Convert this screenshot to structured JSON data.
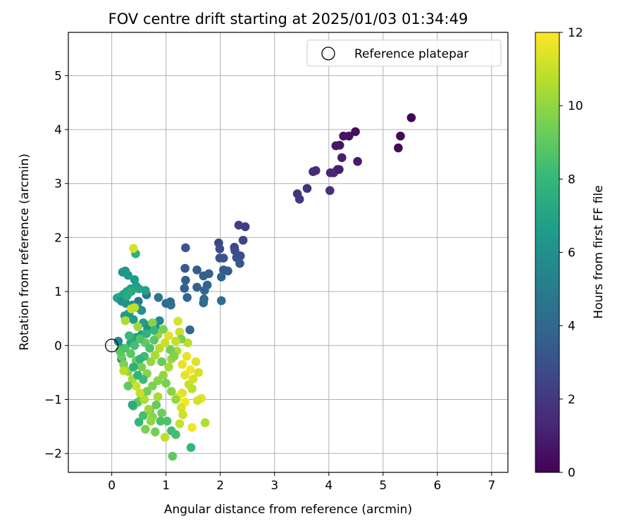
{
  "chart_data": {
    "type": "scatter",
    "title": "FOV centre drift starting at 2025/01/03 01:34:49",
    "xlabel": "Angular distance from reference (arcmin)",
    "ylabel": "Rotation from reference (arcmin)",
    "xlim": [
      -0.8,
      7.3
    ],
    "ylim": [
      -2.35,
      5.8
    ],
    "xticks": [
      "0",
      "1",
      "2",
      "3",
      "4",
      "5",
      "6",
      "7"
    ],
    "yticks": [
      "−2",
      "−1",
      "0",
      "1",
      "2",
      "3",
      "4",
      "5"
    ],
    "grid": true,
    "legend": {
      "position": "top-right",
      "entries": [
        "Reference platepar"
      ]
    },
    "reference_point": {
      "x": 0.0,
      "y": 0.0,
      "marker": "open-circle"
    },
    "colorbar": {
      "label": "Hours from first FF file",
      "range": [
        0,
        12
      ],
      "ticks": [
        "0",
        "2",
        "4",
        "6",
        "8",
        "10",
        "12"
      ],
      "colormap": "viridis",
      "colors": [
        "#440154",
        "#482878",
        "#3e4989",
        "#31688e",
        "#26828e",
        "#1f9e89",
        "#35b779",
        "#6ece58",
        "#b5de2b",
        "#fde725"
      ]
    },
    "points": [
      [
        5.52,
        4.22,
        0.1
      ],
      [
        5.32,
        3.88,
        0.2
      ],
      [
        5.28,
        3.66,
        0.3
      ],
      [
        4.49,
        3.96,
        0.4
      ],
      [
        4.37,
        3.88,
        0.5
      ],
      [
        4.27,
        3.88,
        0.6
      ],
      [
        4.2,
        3.71,
        0.7
      ],
      [
        4.13,
        3.7,
        0.8
      ],
      [
        4.53,
        3.41,
        0.9
      ],
      [
        4.24,
        3.48,
        1.0
      ],
      [
        4.16,
        3.26,
        1.1
      ],
      [
        4.09,
        3.2,
        1.2
      ],
      [
        4.03,
        3.2,
        1.3
      ],
      [
        3.76,
        3.24,
        1.4
      ],
      [
        3.71,
        3.22,
        1.5
      ],
      [
        4.02,
        2.87,
        1.6
      ],
      [
        3.6,
        2.91,
        1.7
      ],
      [
        3.42,
        2.81,
        1.8
      ],
      [
        3.46,
        2.71,
        1.9
      ],
      [
        4.19,
        3.26,
        1.0
      ],
      [
        2.46,
        2.2,
        2.2
      ],
      [
        2.34,
        2.23,
        2.3
      ],
      [
        2.42,
        1.95,
        2.4
      ],
      [
        1.97,
        1.9,
        2.5
      ],
      [
        2.26,
        1.82,
        2.6
      ],
      [
        2.27,
        1.76,
        2.7
      ],
      [
        2.37,
        1.66,
        2.8
      ],
      [
        1.99,
        1.79,
        2.9
      ],
      [
        2.3,
        1.63,
        3.0
      ],
      [
        1.99,
        1.62,
        3.1
      ],
      [
        2.06,
        1.62,
        3.2
      ],
      [
        2.36,
        1.52,
        3.3
      ],
      [
        2.06,
        1.4,
        3.4
      ],
      [
        2.14,
        1.38,
        3.5
      ],
      [
        1.79,
        1.33,
        3.6
      ],
      [
        1.69,
        1.29,
        3.7
      ],
      [
        2.02,
        1.27,
        3.8
      ],
      [
        1.76,
        1.12,
        3.9
      ],
      [
        1.71,
        1.02,
        4.0
      ],
      [
        1.7,
        0.86,
        4.1
      ],
      [
        1.69,
        0.79,
        4.2
      ],
      [
        2.02,
        0.83,
        4.3
      ],
      [
        1.57,
        1.4,
        3.5
      ],
      [
        1.57,
        1.08,
        3.8
      ],
      [
        1.36,
        1.81,
        3.2
      ],
      [
        1.35,
        1.43,
        3.4
      ],
      [
        1.36,
        1.21,
        3.6
      ],
      [
        1.34,
        1.06,
        3.7
      ],
      [
        1.39,
        0.89,
        3.9
      ],
      [
        1.08,
        0.81,
        4.2
      ],
      [
        1.09,
        0.75,
        4.4
      ],
      [
        1.0,
        0.78,
        4.3
      ],
      [
        0.86,
        0.89,
        4.5
      ],
      [
        0.64,
        0.94,
        4.6
      ],
      [
        0.49,
        0.82,
        4.7
      ],
      [
        1.44,
        0.29,
        4.0
      ],
      [
        0.25,
        1.38,
        6.2
      ],
      [
        0.2,
        1.36,
        6.3
      ],
      [
        0.3,
        1.3,
        6.4
      ],
      [
        0.42,
        1.22,
        6.5
      ],
      [
        0.45,
        1.1,
        6.6
      ],
      [
        0.35,
        1.05,
        6.7
      ],
      [
        0.28,
        1.0,
        6.8
      ],
      [
        0.22,
        0.95,
        6.9
      ],
      [
        0.15,
        0.9,
        7.0
      ],
      [
        0.1,
        0.88,
        7.1
      ],
      [
        0.18,
        0.82,
        6.0
      ],
      [
        0.26,
        0.78,
        6.1
      ],
      [
        0.38,
        0.75,
        6.2
      ],
      [
        0.48,
        0.7,
        6.3
      ],
      [
        0.55,
        0.65,
        5.9
      ],
      [
        0.32,
        0.6,
        6.4
      ],
      [
        0.24,
        0.55,
        6.5
      ],
      [
        0.4,
        0.48,
        6.6
      ],
      [
        0.58,
        0.42,
        6.7
      ],
      [
        0.7,
        0.38,
        6.5
      ],
      [
        0.66,
        0.3,
        5.8
      ],
      [
        0.8,
        0.35,
        6.0
      ],
      [
        0.88,
        0.46,
        5.7
      ],
      [
        0.55,
        0.2,
        6.8
      ],
      [
        0.45,
        0.15,
        7.0
      ],
      [
        0.35,
        0.05,
        7.2
      ],
      [
        0.2,
        -0.05,
        7.5
      ],
      [
        0.12,
        0.08,
        5.6
      ],
      [
        0.18,
        -0.25,
        5.5
      ],
      [
        0.28,
        0.92,
        7.2
      ],
      [
        0.36,
        1.0,
        7.3
      ],
      [
        0.5,
        1.05,
        7.0
      ],
      [
        0.62,
        1.02,
        6.8
      ],
      [
        0.44,
        1.7,
        7.5
      ],
      [
        0.4,
        1.8,
        11.2
      ],
      [
        0.36,
        0.68,
        11.0
      ],
      [
        0.42,
        0.7,
        10.8
      ],
      [
        0.25,
        0.46,
        10.5
      ],
      [
        0.48,
        0.35,
        10.2
      ],
      [
        0.75,
        0.42,
        9.8
      ],
      [
        0.85,
        0.2,
        10.1
      ],
      [
        0.95,
        0.3,
        9.5
      ],
      [
        1.05,
        0.18,
        11.4
      ],
      [
        1.22,
        0.45,
        11.3
      ],
      [
        1.25,
        0.25,
        11.0
      ],
      [
        1.4,
        0.05,
        10.8
      ],
      [
        1.2,
        -0.1,
        10.5
      ],
      [
        1.1,
        -0.25,
        10.2
      ],
      [
        1.3,
        -0.35,
        11.6
      ],
      [
        1.45,
        -0.45,
        11.8
      ],
      [
        1.35,
        -0.55,
        11.5
      ],
      [
        1.5,
        -0.62,
        11.2
      ],
      [
        1.42,
        -0.72,
        11.0
      ],
      [
        1.48,
        -0.8,
        10.8
      ],
      [
        1.3,
        -0.88,
        11.4
      ],
      [
        1.22,
        -0.95,
        11.7
      ],
      [
        1.35,
        -1.05,
        11.9
      ],
      [
        1.28,
        -1.15,
        11.3
      ],
      [
        1.31,
        -1.28,
        11.1
      ],
      [
        1.65,
        -0.98,
        11.5
      ],
      [
        1.58,
        -1.02,
        11.2
      ],
      [
        1.72,
        -1.43,
        10.6
      ],
      [
        1.48,
        -1.52,
        11.8
      ],
      [
        1.25,
        -1.45,
        11.0
      ],
      [
        1.05,
        -0.4,
        10.4
      ],
      [
        0.95,
        -0.55,
        10.0
      ],
      [
        0.85,
        -0.65,
        9.8
      ],
      [
        0.75,
        -0.75,
        9.6
      ],
      [
        0.65,
        -0.85,
        9.4
      ],
      [
        0.55,
        -0.95,
        9.2
      ],
      [
        0.48,
        -1.05,
        9.0
      ],
      [
        0.4,
        -1.12,
        8.8
      ],
      [
        0.38,
        -1.1,
        7.4
      ],
      [
        0.5,
        -1.42,
        8.0
      ],
      [
        0.58,
        -1.3,
        8.4
      ],
      [
        0.7,
        -1.2,
        8.7
      ],
      [
        0.82,
        -1.1,
        9.1
      ],
      [
        0.92,
        -1.25,
        9.3
      ],
      [
        1.02,
        -1.4,
        8.6
      ],
      [
        1.1,
        -1.58,
        8.2
      ],
      [
        1.18,
        -1.65,
        8.4
      ],
      [
        1.46,
        -1.89,
        8.0
      ],
      [
        1.12,
        -2.05,
        9.0
      ],
      [
        0.9,
        -1.4,
        8.5
      ],
      [
        0.75,
        -1.32,
        9.8
      ],
      [
        0.68,
        -1.18,
        10.2
      ],
      [
        0.6,
        -1.0,
        10.6
      ],
      [
        0.52,
        -0.88,
        10.9
      ],
      [
        0.45,
        -0.75,
        11.1
      ],
      [
        0.38,
        -0.62,
        10.4
      ],
      [
        0.3,
        -0.48,
        10.0
      ],
      [
        0.22,
        -0.35,
        9.6
      ],
      [
        0.18,
        -0.2,
        9.2
      ],
      [
        0.15,
        -0.1,
        8.8
      ],
      [
        0.25,
        -0.05,
        8.6
      ],
      [
        0.35,
        -0.15,
        8.9
      ],
      [
        0.45,
        -0.28,
        9.2
      ],
      [
        0.55,
        -0.4,
        9.5
      ],
      [
        0.65,
        -0.52,
        9.8
      ],
      [
        0.72,
        -0.3,
        10.1
      ],
      [
        0.8,
        -0.18,
        10.4
      ],
      [
        0.88,
        -0.05,
        10.7
      ],
      [
        0.98,
        0.05,
        11.0
      ],
      [
        1.08,
        -0.08,
        9.4
      ],
      [
        1.15,
        -0.2,
        9.7
      ],
      [
        0.62,
        0.05,
        9.0
      ],
      [
        0.52,
        0.12,
        8.7
      ],
      [
        0.42,
        0.0,
        8.4
      ],
      [
        0.32,
        0.18,
        8.1
      ],
      [
        0.6,
        -0.2,
        8.3
      ],
      [
        0.7,
        -0.05,
        8.6
      ],
      [
        0.78,
        0.1,
        8.9
      ],
      [
        0.92,
        -0.3,
        9.2
      ],
      [
        1.0,
        -0.7,
        9.5
      ],
      [
        1.1,
        -0.85,
        9.8
      ],
      [
        1.18,
        -1.0,
        10.1
      ],
      [
        0.85,
        -0.95,
        10.4
      ],
      [
        0.72,
        -1.4,
        10.0
      ],
      [
        0.62,
        -1.55,
        9.6
      ],
      [
        0.8,
        -1.6,
        9.4
      ],
      [
        0.98,
        -1.7,
        10.8
      ],
      [
        1.38,
        -0.2,
        11.6
      ],
      [
        1.55,
        -0.3,
        11.4
      ],
      [
        1.6,
        -0.5,
        11.2
      ],
      [
        0.22,
        -0.47,
        10.8
      ],
      [
        0.3,
        -0.75,
        9.0
      ],
      [
        0.58,
        -0.63,
        8.2
      ],
      [
        0.48,
        -0.55,
        7.8
      ],
      [
        0.4,
        -0.4,
        7.6
      ],
      [
        0.52,
        -0.25,
        7.9
      ],
      [
        0.64,
        0.22,
        7.7
      ],
      [
        0.78,
        0.28,
        8.0
      ],
      [
        1.28,
        0.12,
        9.6
      ],
      [
        1.18,
        0.08,
        10.9
      ]
    ]
  }
}
